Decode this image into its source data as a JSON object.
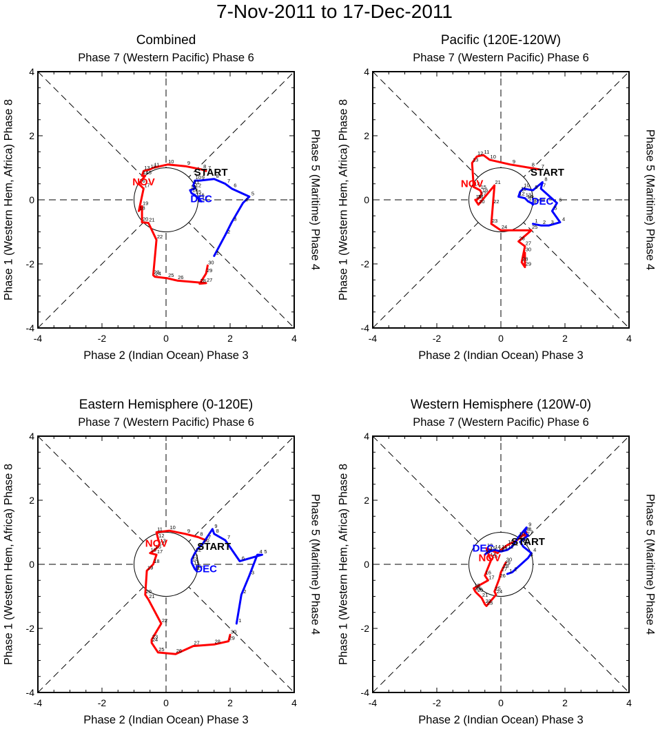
{
  "title": "7-Nov-2011 to 17-Dec-2011",
  "colors": {
    "nov": "#ff0000",
    "dec": "#0000ff",
    "start": "#000000"
  },
  "chart_data": [
    {
      "type": "line",
      "title": "Combined",
      "top_label": "Phase 7 (Western Pacific) Phase 6",
      "bottom_label": "Phase 2 (Indian Ocean) Phase 3",
      "left_label": "Phase 1 (Western Hem, Africa) Phase 8",
      "right_label": "Phase 5 (Maritime) Phase 4",
      "xlim": [
        -4,
        4
      ],
      "ylim": [
        -4,
        4
      ],
      "xticks": [
        "-4",
        "-2",
        "0",
        "2",
        "4"
      ],
      "yticks": [
        "-4",
        "-2",
        "0",
        "2",
        "4"
      ],
      "labels": {
        "start": "START",
        "nov": "NOV",
        "dec": "DEC"
      },
      "start_pos": [
        1.4,
        0.75
      ],
      "nov_pos": [
        -0.7,
        0.45
      ],
      "dec_pos": [
        1.1,
        -0.08
      ],
      "series": [
        {
          "name": "November",
          "color": "#ff0000",
          "days": [
            "7",
            "8",
            "9",
            "10",
            "11",
            "12",
            "13",
            "14",
            "15",
            "16",
            "17",
            "18",
            "19",
            "20",
            "21",
            "22",
            "23",
            "24",
            "25",
            "26",
            "27",
            "28",
            "29",
            "30"
          ],
          "x": [
            1.25,
            1.1,
            0.6,
            0.05,
            -0.4,
            -0.5,
            -0.7,
            -0.75,
            -0.65,
            -0.85,
            -0.7,
            -0.85,
            -0.75,
            -0.75,
            -0.55,
            -0.3,
            -0.4,
            -0.35,
            0.05,
            0.35,
            1.25,
            1.05,
            1.25,
            1.3
          ],
          "y": [
            0.9,
            0.95,
            1.05,
            1.1,
            1.0,
            0.95,
            0.9,
            0.75,
            0.75,
            0.5,
            0.35,
            -0.35,
            -0.2,
            -0.7,
            -0.72,
            -1.25,
            -2.35,
            -2.4,
            -2.45,
            -2.52,
            -2.6,
            -2.62,
            -2.3,
            -2.05
          ]
        },
        {
          "name": "December",
          "color": "#0000ff",
          "days": [
            "1",
            "2",
            "3",
            "4",
            "5",
            "6",
            "7",
            "8",
            "9",
            "10",
            "11",
            "12",
            "13",
            "14",
            "15",
            "16",
            "17"
          ],
          "x": [
            1.5,
            1.85,
            2.05,
            2.4,
            2.6,
            2.05,
            1.85,
            1.5,
            1.05,
            0.9,
            0.85,
            0.9,
            0.75,
            0.8,
            0.9,
            1.0,
            1.1
          ],
          "y": [
            -1.75,
            -1.1,
            -0.7,
            -0.1,
            0.1,
            0.35,
            0.5,
            0.65,
            0.6,
            0.6,
            0.45,
            0.35,
            0.3,
            0.2,
            0.15,
            0.05,
            -0.05
          ]
        }
      ]
    },
    {
      "type": "line",
      "title": "Pacific (120E-120W)",
      "top_label": "Phase 7 (Western Pacific) Phase 6",
      "bottom_label": "Phase 2 (Indian Ocean) Phase 3",
      "left_label": "Phase 1 (Western Hem, Africa) Phase 8",
      "right_label": "Phase 5 (Maritime) Phase 4",
      "xlim": [
        -4,
        4
      ],
      "ylim": [
        -4,
        4
      ],
      "xticks": [
        "-4",
        "-2",
        "0",
        "2",
        "4"
      ],
      "yticks": [
        "-4",
        "-2",
        "0",
        "2",
        "4"
      ],
      "labels": {
        "start": "START",
        "nov": "NOV",
        "dec": "DEC"
      },
      "start_pos": [
        1.45,
        0.75
      ],
      "nov_pos": [
        -0.9,
        0.4
      ],
      "dec_pos": [
        1.3,
        -0.15
      ],
      "series": [
        {
          "name": "November",
          "color": "#ff0000",
          "days": [
            "7",
            "8",
            "9",
            "10",
            "11",
            "12",
            "13",
            "14",
            "15",
            "16",
            "17",
            "18",
            "19",
            "20",
            "21",
            "22",
            "23",
            "24",
            "25",
            "26",
            "27",
            "28",
            "29",
            "30"
          ],
          "x": [
            1.2,
            0.9,
            0.3,
            -0.35,
            -0.55,
            -0.75,
            -0.9,
            -0.85,
            -0.65,
            -0.6,
            -0.65,
            -0.75,
            -0.8,
            -0.7,
            -0.2,
            -0.25,
            -0.3,
            0.0,
            0.95,
            0.55,
            0.75,
            0.65,
            0.75,
            0.75
          ],
          "y": [
            0.95,
            1.0,
            1.1,
            1.25,
            1.4,
            1.35,
            1.15,
            0.4,
            0.3,
            0.2,
            0.1,
            0.0,
            0.0,
            -0.15,
            0.45,
            -0.15,
            -0.75,
            -0.95,
            -0.95,
            -1.3,
            -1.45,
            -1.95,
            -2.1,
            -1.65
          ]
        },
        {
          "name": "December",
          "color": "#0000ff",
          "days": [
            "1",
            "2",
            "3",
            "4",
            "5",
            "6",
            "7",
            "8",
            "9",
            "10",
            "11",
            "12",
            "13",
            "14",
            "15",
            "16",
            "17"
          ],
          "x": [
            1.0,
            1.25,
            1.5,
            1.85,
            1.6,
            1.75,
            1.25,
            1.3,
            1.0,
            0.7,
            0.6,
            0.55,
            0.75,
            0.8,
            0.85,
            0.95,
            1.0
          ],
          "y": [
            -0.75,
            -0.8,
            -0.8,
            -0.7,
            -0.35,
            -0.1,
            0.35,
            0.55,
            0.3,
            0.35,
            0.25,
            0.1,
            0.05,
            0.0,
            -0.05,
            -0.1,
            -0.15
          ]
        }
      ]
    },
    {
      "type": "line",
      "title": "Eastern Hemisphere (0-120E)",
      "top_label": "Phase 7 (Western Pacific) Phase 6",
      "bottom_label": "Phase 2 (Indian Ocean) Phase 3",
      "left_label": "Phase 1 (Western Hem, Africa) Phase 8",
      "right_label": "Phase 5 (Maritime) Phase 4",
      "xlim": [
        -4,
        4
      ],
      "ylim": [
        -4,
        4
      ],
      "xticks": [
        "-4",
        "-2",
        "0",
        "2",
        "4"
      ],
      "yticks": [
        "-4",
        "-2",
        "0",
        "2",
        "4"
      ],
      "labels": {
        "start": "START",
        "nov": "NOV",
        "dec": "DEC"
      },
      "start_pos": [
        1.5,
        0.45
      ],
      "nov_pos": [
        -0.3,
        0.55
      ],
      "dec_pos": [
        1.25,
        -0.25
      ],
      "series": [
        {
          "name": "November",
          "color": "#ff0000",
          "days": [
            "7",
            "8",
            "9",
            "10",
            "11",
            "12",
            "13",
            "14",
            "15",
            "16",
            "17",
            "18",
            "19",
            "20",
            "21",
            "22",
            "23",
            "24",
            "25",
            "26",
            "27",
            "28",
            "29",
            "30"
          ],
          "x": [
            1.25,
            1.0,
            0.6,
            0.1,
            -0.3,
            -0.25,
            -0.2,
            -0.25,
            -0.35,
            -0.5,
            -0.3,
            -0.4,
            -0.6,
            -0.65,
            -0.55,
            -0.15,
            -0.45,
            -0.45,
            -0.25,
            0.3,
            0.85,
            1.5,
            1.95,
            2.0
          ],
          "y": [
            0.75,
            0.85,
            0.95,
            1.05,
            1.0,
            0.8,
            0.65,
            0.55,
            0.45,
            0.35,
            0.3,
            0.0,
            -0.2,
            -0.95,
            -1.1,
            -1.85,
            -2.35,
            -2.45,
            -2.75,
            -2.8,
            -2.55,
            -2.5,
            -2.4,
            -2.2
          ]
        },
        {
          "name": "December",
          "color": "#0000ff",
          "days": [
            "1",
            "2",
            "3",
            "4",
            "5",
            "6",
            "7",
            "8",
            "9",
            "10",
            "11",
            "12",
            "13",
            "14",
            "15",
            "16",
            "17"
          ],
          "x": [
            2.2,
            2.35,
            2.6,
            2.85,
            3.0,
            2.3,
            1.85,
            1.5,
            1.45,
            1.15,
            1.0,
            0.9,
            0.8,
            0.8,
            0.85,
            0.9,
            0.95
          ],
          "y": [
            -1.85,
            -0.95,
            -0.35,
            0.3,
            0.3,
            0.1,
            0.75,
            0.95,
            1.1,
            0.65,
            0.5,
            0.35,
            0.15,
            0.05,
            -0.05,
            -0.15,
            -0.2
          ]
        }
      ]
    },
    {
      "type": "line",
      "title": "Western Hemisphere (120W-0)",
      "top_label": "Phase 7 (Western Pacific) Phase 6",
      "bottom_label": "Phase 2 (Indian Ocean) Phase 3",
      "left_label": "Phase 1 (Western Hem, Africa) Phase 8",
      "right_label": "Phase 5 (Maritime) Phase 4",
      "xlim": [
        -4,
        4
      ],
      "ylim": [
        -4,
        4
      ],
      "xticks": [
        "-4",
        "-2",
        "0",
        "2",
        "4"
      ],
      "yticks": [
        "-4",
        "-2",
        "0",
        "2",
        "4"
      ],
      "labels": {
        "start": "START",
        "nov": "NOV",
        "dec": "DEC"
      },
      "start_pos": [
        0.85,
        0.6
      ],
      "nov_pos": [
        -0.35,
        0.1
      ],
      "dec_pos": [
        -0.55,
        0.4
      ],
      "series": [
        {
          "name": "November",
          "color": "#ff0000",
          "days": [
            "7",
            "8",
            "9",
            "10",
            "11",
            "12",
            "13",
            "14",
            "15",
            "16",
            "17",
            "18",
            "19",
            "20",
            "21",
            "22",
            "23",
            "24",
            "25",
            "26",
            "27",
            "28",
            "29",
            "30"
          ],
          "x": [
            0.75,
            0.8,
            0.5,
            0.2,
            0.0,
            -0.1,
            -0.45,
            -0.35,
            -0.3,
            -0.5,
            -0.4,
            -0.85,
            -0.8,
            -0.75,
            -0.6,
            -0.5,
            -0.45,
            -0.15,
            -0.2,
            -0.05,
            0.0,
            0.05,
            0.1,
            0.15
          ],
          "y": [
            0.85,
            1.0,
            0.75,
            0.6,
            0.45,
            0.35,
            0.5,
            0.2,
            0.15,
            -0.35,
            -0.5,
            -0.75,
            -0.85,
            -0.9,
            -1.05,
            -1.25,
            -1.3,
            -0.95,
            -0.85,
            -0.45,
            -0.25,
            -0.15,
            -0.05,
            0.05
          ]
        },
        {
          "name": "December",
          "color": "#0000ff",
          "days": [
            "1",
            "2",
            "3",
            "4",
            "5",
            "6",
            "7",
            "8",
            "9",
            "10",
            "11",
            "12",
            "13",
            "14",
            "15",
            "16",
            "17"
          ],
          "x": [
            0.2,
            0.35,
            0.85,
            0.95,
            0.7,
            0.6,
            0.85,
            0.75,
            0.8,
            0.55,
            0.35,
            0.2,
            0.0,
            -0.2,
            -0.35,
            -0.45,
            -0.5
          ],
          "y": [
            -0.3,
            -0.25,
            0.2,
            0.35,
            0.55,
            0.7,
            0.9,
            1.0,
            1.15,
            0.85,
            0.55,
            0.45,
            0.4,
            0.45,
            0.4,
            0.35,
            0.3
          ]
        }
      ]
    }
  ]
}
